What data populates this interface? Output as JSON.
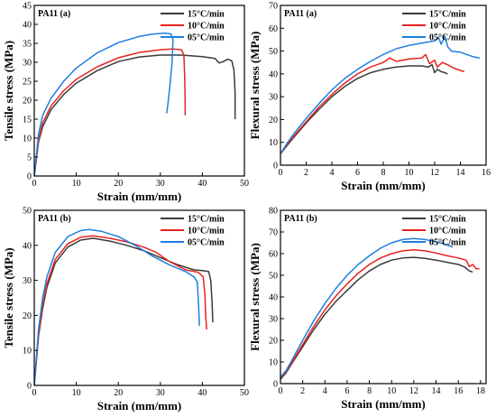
{
  "colors": {
    "s15": "#3a3a3a",
    "s10": "#e8231f",
    "s05": "#1e7fe0"
  },
  "chart_data": [
    {
      "type": "line",
      "panel_label": "PA11 (a)",
      "xlabel": "Strain (mm/mm)",
      "ylabel": "Tensile stress (MPa)",
      "xlim": [
        0,
        50
      ],
      "ylim": [
        0,
        45
      ],
      "xticks": [
        0,
        10,
        20,
        30,
        40,
        50
      ],
      "yticks": [
        0,
        5,
        10,
        15,
        20,
        25,
        30,
        35,
        40,
        45
      ],
      "legend_position": "top-right",
      "series": [
        {
          "name": "15°C/min",
          "color_key": "s15",
          "points": [
            [
              0,
              0
            ],
            [
              1,
              9
            ],
            [
              2,
              13
            ],
            [
              4,
              17.5
            ],
            [
              7,
              21.5
            ],
            [
              10,
              24.5
            ],
            [
              15,
              27.8
            ],
            [
              20,
              30.2
            ],
            [
              25,
              31.4
            ],
            [
              30,
              31.9
            ],
            [
              35,
              31.9
            ],
            [
              40,
              31.5
            ],
            [
              43,
              31
            ],
            [
              44,
              29.8
            ],
            [
              45,
              30.2
            ],
            [
              46,
              30.8
            ],
            [
              47,
              30.4
            ],
            [
              47.5,
              28
            ],
            [
              47.8,
              22
            ],
            [
              47.8,
              15
            ]
          ]
        },
        {
          "name": "10°C/min",
          "color_key": "s10",
          "points": [
            [
              0,
              0
            ],
            [
              1,
              9.5
            ],
            [
              2,
              14
            ],
            [
              4,
              18.5
            ],
            [
              7,
              22.5
            ],
            [
              10,
              25.5
            ],
            [
              15,
              28.8
            ],
            [
              20,
              31.2
            ],
            [
              25,
              32.6
            ],
            [
              30,
              33.3
            ],
            [
              33,
              33.5
            ],
            [
              35,
              33.3
            ],
            [
              35.6,
              32
            ],
            [
              35.8,
              26
            ],
            [
              35.9,
              20
            ],
            [
              35.9,
              16
            ]
          ]
        },
        {
          "name": "05°C/min",
          "color_key": "s05",
          "points": [
            [
              0,
              0
            ],
            [
              1,
              11
            ],
            [
              2,
              16
            ],
            [
              4,
              20.5
            ],
            [
              7,
              25
            ],
            [
              10,
              28.5
            ],
            [
              15,
              32.5
            ],
            [
              20,
              35.2
            ],
            [
              25,
              36.8
            ],
            [
              28,
              37.4
            ],
            [
              31,
              37.7
            ],
            [
              32.5,
              37.5
            ],
            [
              33,
              36
            ],
            [
              32.8,
              30
            ],
            [
              32.3,
              24
            ],
            [
              31.8,
              19
            ],
            [
              31.5,
              16.5
            ]
          ]
        }
      ]
    },
    {
      "type": "line",
      "panel_label": "PA11 (a)",
      "xlabel": "Strain (mm/mm)",
      "ylabel": "Flexural stress (MPa)",
      "xlim": [
        0,
        16
      ],
      "ylim": [
        0,
        70
      ],
      "xticks": [
        0,
        2,
        4,
        6,
        8,
        10,
        12,
        14,
        16
      ],
      "yticks": [
        0,
        10,
        20,
        30,
        40,
        50,
        60,
        70
      ],
      "legend_position": "top-right",
      "series": [
        {
          "name": "15°C/min",
          "color_key": "s15",
          "points": [
            [
              0,
              5
            ],
            [
              0.5,
              8.5
            ],
            [
              1,
              12
            ],
            [
              2,
              18.5
            ],
            [
              3,
              24.5
            ],
            [
              4,
              30
            ],
            [
              5,
              34.5
            ],
            [
              6,
              38
            ],
            [
              7,
              40.5
            ],
            [
              8,
              42
            ],
            [
              9,
              43
            ],
            [
              10,
              43.5
            ],
            [
              11,
              43.5
            ],
            [
              11.5,
              43
            ],
            [
              11.8,
              44
            ],
            [
              12,
              40.5
            ],
            [
              12.2,
              42
            ],
            [
              12.5,
              41
            ],
            [
              12.8,
              40.5
            ],
            [
              13,
              40
            ]
          ]
        },
        {
          "name": "10°C/min",
          "color_key": "s10",
          "points": [
            [
              0,
              5
            ],
            [
              0.5,
              9
            ],
            [
              1,
              12.5
            ],
            [
              2,
              19
            ],
            [
              3,
              25.5
            ],
            [
              4,
              31
            ],
            [
              5,
              36
            ],
            [
              6,
              40
            ],
            [
              7,
              43
            ],
            [
              8,
              45
            ],
            [
              8.5,
              47
            ],
            [
              9,
              45.5
            ],
            [
              10,
              46.5
            ],
            [
              11,
              47
            ],
            [
              11.3,
              48.5
            ],
            [
              11.6,
              44.5
            ],
            [
              12,
              46
            ],
            [
              12.2,
              43
            ],
            [
              12.6,
              45
            ],
            [
              13,
              44
            ],
            [
              13.5,
              42.5
            ],
            [
              14,
              41.5
            ],
            [
              14.3,
              41
            ]
          ]
        },
        {
          "name": "05°C/min",
          "color_key": "s05",
          "points": [
            [
              0,
              5
            ],
            [
              0.5,
              9.5
            ],
            [
              1,
              13.5
            ],
            [
              2,
              20.5
            ],
            [
              3,
              27
            ],
            [
              4,
              33
            ],
            [
              5,
              38
            ],
            [
              6,
              42
            ],
            [
              7,
              45.5
            ],
            [
              8,
              48.5
            ],
            [
              9,
              51
            ],
            [
              10,
              52.5
            ],
            [
              11,
              53.5
            ],
            [
              11.5,
              54
            ],
            [
              12,
              54.5
            ],
            [
              12.3,
              56
            ],
            [
              12.5,
              53
            ],
            [
              12.8,
              56.5
            ],
            [
              13,
              52
            ],
            [
              13.3,
              50
            ],
            [
              14,
              49.5
            ],
            [
              14.5,
              48.5
            ],
            [
              15,
              47.5
            ],
            [
              15.5,
              47
            ]
          ]
        }
      ]
    },
    {
      "type": "line",
      "panel_label": "PA11 (b)",
      "xlabel": "Strain (mm/mm)",
      "ylabel": "Tensile stress (MPa)",
      "xlim": [
        0,
        50
      ],
      "ylim": [
        0,
        50
      ],
      "xticks": [
        0,
        10,
        20,
        30,
        40,
        50
      ],
      "yticks": [
        0,
        10,
        20,
        30,
        40,
        50
      ],
      "legend_position": "top-right",
      "series": [
        {
          "name": "15°C/min",
          "color_key": "s15",
          "points": [
            [
              0,
              0
            ],
            [
              1,
              14
            ],
            [
              2,
              22
            ],
            [
              3,
              28
            ],
            [
              5,
              35
            ],
            [
              8,
              39.5
            ],
            [
              11,
              41.5
            ],
            [
              14,
              42
            ],
            [
              18,
              41.2
            ],
            [
              22,
              40
            ],
            [
              26,
              38.5
            ],
            [
              30,
              36.5
            ],
            [
              34,
              34.5
            ],
            [
              38,
              33
            ],
            [
              40,
              32.8
            ],
            [
              41.5,
              32.5
            ],
            [
              42,
              30
            ],
            [
              42.3,
              24
            ],
            [
              42.5,
              18
            ]
          ]
        },
        {
          "name": "10°C/min",
          "color_key": "s10",
          "points": [
            [
              0,
              0
            ],
            [
              1,
              14.5
            ],
            [
              2,
              23
            ],
            [
              3,
              29
            ],
            [
              5,
              36
            ],
            [
              8,
              40.5
            ],
            [
              11,
              42.3
            ],
            [
              14,
              42.7
            ],
            [
              18,
              42
            ],
            [
              22,
              41
            ],
            [
              26,
              39.5
            ],
            [
              29,
              38
            ],
            [
              32,
              35.5
            ],
            [
              36,
              33
            ],
            [
              39,
              32.3
            ],
            [
              40.2,
              31
            ],
            [
              40.6,
              26
            ],
            [
              40.8,
              20
            ],
            [
              41,
              16
            ]
          ]
        },
        {
          "name": "05°C/min",
          "color_key": "s05",
          "points": [
            [
              0,
              0
            ],
            [
              1,
              16
            ],
            [
              2,
              25
            ],
            [
              3,
              31
            ],
            [
              5,
              38
            ],
            [
              8,
              42.5
            ],
            [
              11,
              44.2
            ],
            [
              13,
              44.5
            ],
            [
              16,
              44
            ],
            [
              20,
              42.5
            ],
            [
              24,
              40
            ],
            [
              28,
              37
            ],
            [
              32,
              34.5
            ],
            [
              36,
              32.5
            ],
            [
              38,
              31
            ],
            [
              38.8,
              29.5
            ],
            [
              39.1,
              23
            ],
            [
              39.3,
              17
            ]
          ]
        }
      ]
    },
    {
      "type": "line",
      "panel_label": "PA11 (b)",
      "xlabel": "Strain (mm/mm)",
      "ylabel": "Flexural stress (MPa)",
      "xlim": [
        0,
        18.5
      ],
      "ylim": [
        0,
        80
      ],
      "xticks": [
        0,
        2,
        4,
        6,
        8,
        10,
        12,
        14,
        16,
        18
      ],
      "yticks": [
        0,
        10,
        20,
        30,
        40,
        50,
        60,
        70,
        80
      ],
      "legend_position": "top-right",
      "series": [
        {
          "name": "15°C/min",
          "color_key": "s15",
          "points": [
            [
              0,
              2
            ],
            [
              0.5,
              5
            ],
            [
              1,
              9
            ],
            [
              2,
              17
            ],
            [
              3,
              25
            ],
            [
              4,
              32
            ],
            [
              5,
              38
            ],
            [
              6,
              43
            ],
            [
              7,
              48
            ],
            [
              8,
              52
            ],
            [
              9,
              55
            ],
            [
              10,
              57
            ],
            [
              11,
              58
            ],
            [
              12,
              58.3
            ],
            [
              13,
              57.8
            ],
            [
              14,
              57
            ],
            [
              15,
              56
            ],
            [
              16,
              55
            ],
            [
              16.5,
              54
            ],
            [
              17,
              52
            ],
            [
              17.3,
              51.5
            ]
          ]
        },
        {
          "name": "10°C/min",
          "color_key": "s10",
          "points": [
            [
              0,
              2.5
            ],
            [
              0.5,
              5.5
            ],
            [
              1,
              9.5
            ],
            [
              2,
              18
            ],
            [
              3,
              26.5
            ],
            [
              4,
              34
            ],
            [
              5,
              40.5
            ],
            [
              6,
              46
            ],
            [
              7,
              51
            ],
            [
              8,
              55
            ],
            [
              9,
              58
            ],
            [
              10,
              60
            ],
            [
              11,
              61.3
            ],
            [
              12,
              61.8
            ],
            [
              13,
              61.3
            ],
            [
              14,
              60.3
            ],
            [
              15,
              59
            ],
            [
              16,
              58
            ],
            [
              16.7,
              57
            ],
            [
              17,
              54
            ],
            [
              17.3,
              55
            ],
            [
              17.6,
              53
            ],
            [
              17.9,
              53
            ]
          ]
        },
        {
          "name": "05°C/min",
          "color_key": "s05",
          "points": [
            [
              0,
              3
            ],
            [
              0.5,
              6
            ],
            [
              1,
              10.5
            ],
            [
              2,
              20
            ],
            [
              3,
              29
            ],
            [
              4,
              37
            ],
            [
              5,
              44
            ],
            [
              6,
              50
            ],
            [
              7,
              55
            ],
            [
              8,
              59
            ],
            [
              9,
              62.5
            ],
            [
              10,
              65
            ],
            [
              11,
              66.5
            ],
            [
              12,
              67
            ],
            [
              13,
              66.5
            ],
            [
              14,
              65.5
            ],
            [
              15,
              64
            ],
            [
              15.5,
              63
            ]
          ]
        }
      ]
    }
  ]
}
